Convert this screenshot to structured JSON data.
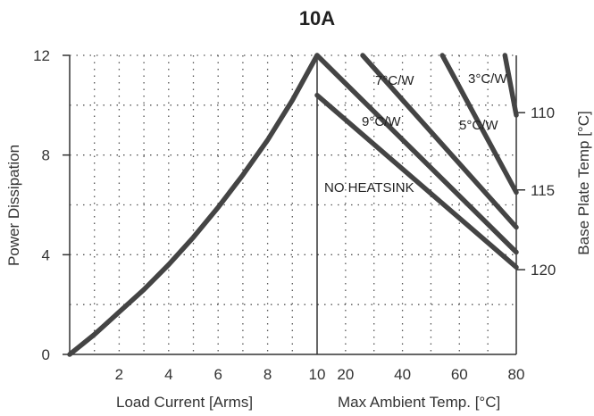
{
  "chart_data": {
    "type": "line",
    "title": "10A",
    "panels": [
      {
        "name": "load",
        "xlabel": "Load Current  [Arms]",
        "xlim": [
          0,
          10
        ],
        "xticks": [
          "2",
          "4",
          "6",
          "8",
          "10"
        ],
        "ylabel": "Power Dissipation",
        "ylim": [
          0,
          12
        ],
        "yticks": [
          "0",
          "4",
          "8",
          "12"
        ],
        "series": [
          {
            "x": [
              0,
              1,
              2,
              3,
              4,
              5,
              6,
              7,
              8,
              9,
              10
            ],
            "y": [
              0,
              0.8,
              1.7,
              2.6,
              3.6,
              4.7,
              5.9,
              7.2,
              8.6,
              10.2,
              12
            ]
          }
        ]
      },
      {
        "name": "ambient",
        "xlabel": "Max Ambient Temp. [°C]",
        "xlim": [
          10,
          80
        ],
        "xticks": [
          "20",
          "40",
          "60",
          "80"
        ],
        "ylabel": "Base Plate Temp [°C]",
        "y2ticks": [
          "110",
          "115",
          "120"
        ],
        "series": [
          {
            "name": "NO HEATSINK",
            "x": [
              10,
              80
            ],
            "y": [
              10.4,
              3.5
            ]
          },
          {
            "name": "9°C/W",
            "x": [
              10,
              80
            ],
            "y": [
              12,
              4.1
            ]
          },
          {
            "name": "7°C/W",
            "x": [
              26,
              80
            ],
            "y": [
              12,
              5.1
            ]
          },
          {
            "name": "5°C/W",
            "x": [
              54,
              80
            ],
            "y": [
              12,
              6.5
            ]
          },
          {
            "name": "3°C/W",
            "x": [
              76,
              80
            ],
            "y": [
              12,
              9.6
            ]
          }
        ]
      }
    ],
    "grid": true
  }
}
